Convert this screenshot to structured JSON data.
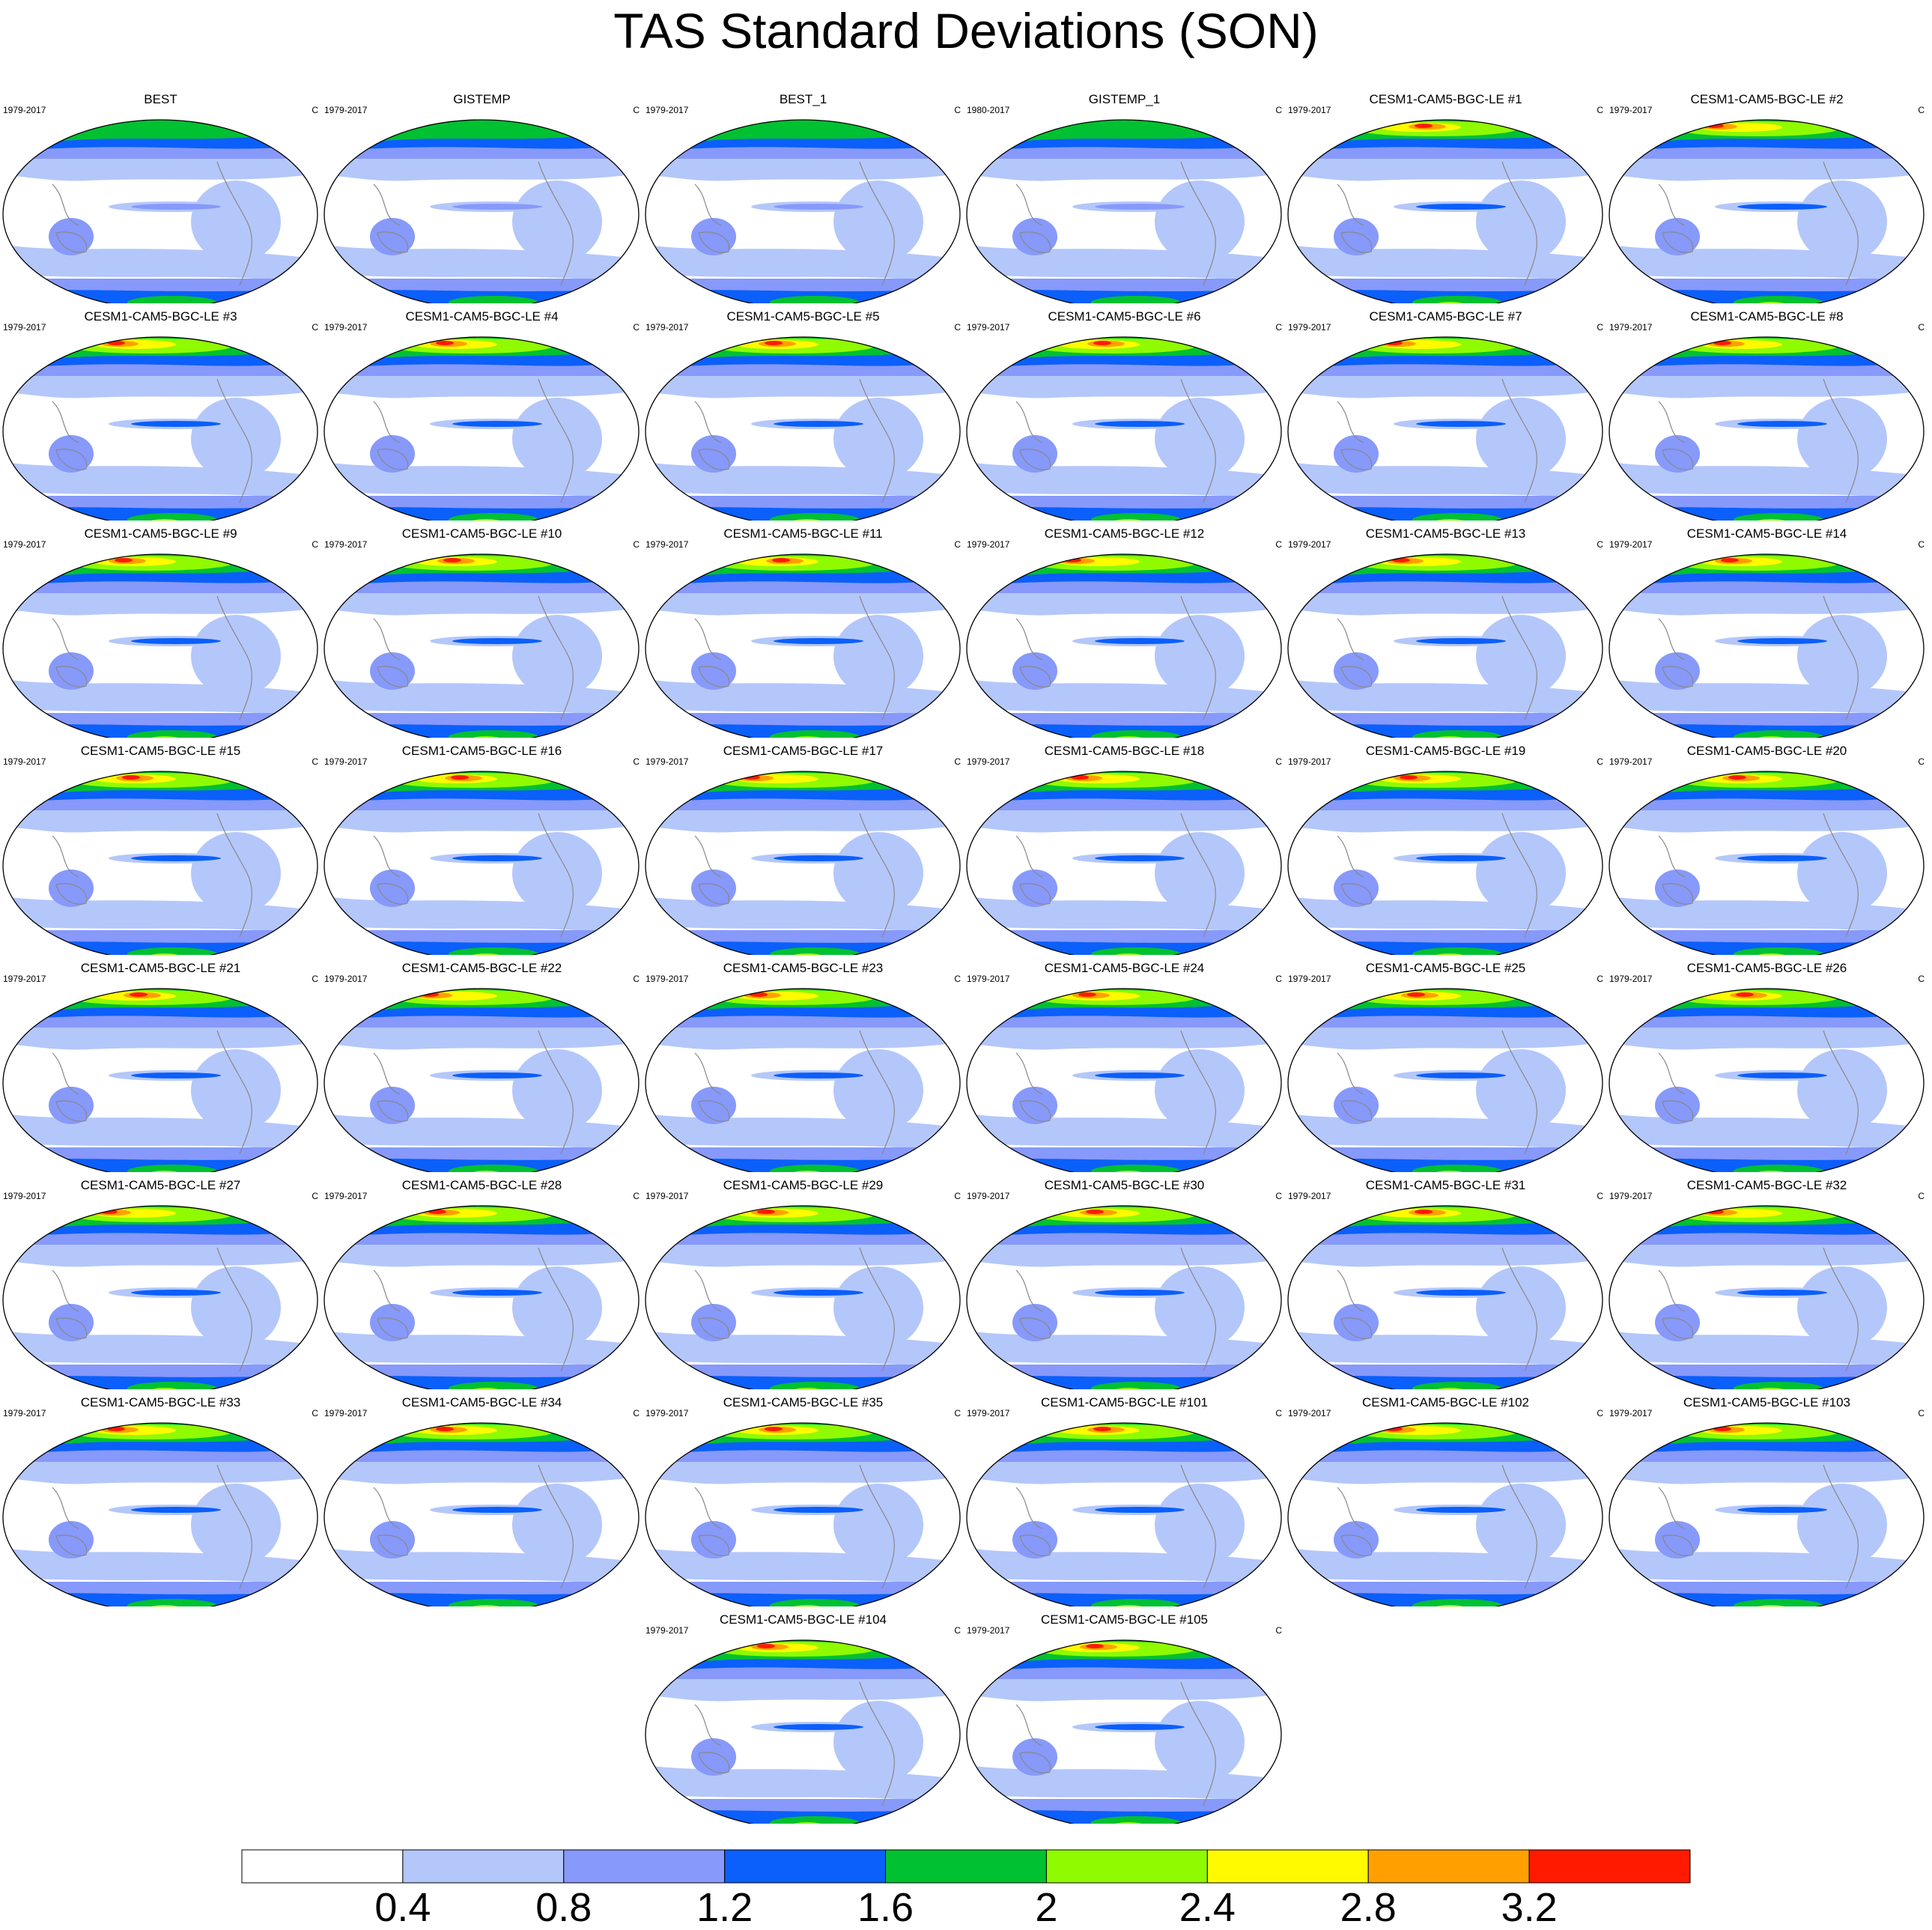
{
  "title": "TAS Standard Deviations (SON)",
  "colors": [
    "#ffffff",
    "#b4c7fa",
    "#8799fa",
    "#0b5ffa",
    "#00c131",
    "#90fa00",
    "#fffa00",
    "#ffa000",
    "#ff1a00"
  ],
  "colorbar": {
    "labels": [
      "0.4",
      "0.8",
      "1.2",
      "1.6",
      "2",
      "2.4",
      "2.8",
      "3.2"
    ]
  },
  "chart_data": {
    "type": "heatmap",
    "units": "C",
    "levels": [
      0.4,
      0.8,
      1.2,
      1.6,
      2.0,
      2.4,
      2.8,
      3.2
    ],
    "panels": [
      {
        "title": "BEST",
        "period": "1979-2017",
        "units": "C"
      },
      {
        "title": "GISTEMP",
        "period": "1979-2017",
        "units": "C"
      },
      {
        "title": "BEST_1",
        "period": "1979-2017",
        "units": "C"
      },
      {
        "title": "GISTEMP_1",
        "period": "1980-2017",
        "units": "C"
      },
      {
        "title": "CESM1-CAM5-BGC-LE #1",
        "period": "1979-2017",
        "units": "C"
      },
      {
        "title": "CESM1-CAM5-BGC-LE #2",
        "period": "1979-2017",
        "units": "C"
      },
      {
        "title": "CESM1-CAM5-BGC-LE #3",
        "period": "1979-2017",
        "units": "C"
      },
      {
        "title": "CESM1-CAM5-BGC-LE #4",
        "period": "1979-2017",
        "units": "C"
      },
      {
        "title": "CESM1-CAM5-BGC-LE #5",
        "period": "1979-2017",
        "units": "C"
      },
      {
        "title": "CESM1-CAM5-BGC-LE #6",
        "period": "1979-2017",
        "units": "C"
      },
      {
        "title": "CESM1-CAM5-BGC-LE #7",
        "period": "1979-2017",
        "units": "C"
      },
      {
        "title": "CESM1-CAM5-BGC-LE #8",
        "period": "1979-2017",
        "units": "C"
      },
      {
        "title": "CESM1-CAM5-BGC-LE #9",
        "period": "1979-2017",
        "units": "C"
      },
      {
        "title": "CESM1-CAM5-BGC-LE #10",
        "period": "1979-2017",
        "units": "C"
      },
      {
        "title": "CESM1-CAM5-BGC-LE #11",
        "period": "1979-2017",
        "units": "C"
      },
      {
        "title": "CESM1-CAM5-BGC-LE #12",
        "period": "1979-2017",
        "units": "C"
      },
      {
        "title": "CESM1-CAM5-BGC-LE #13",
        "period": "1979-2017",
        "units": "C"
      },
      {
        "title": "CESM1-CAM5-BGC-LE #14",
        "period": "1979-2017",
        "units": "C"
      },
      {
        "title": "CESM1-CAM5-BGC-LE #15",
        "period": "1979-2017",
        "units": "C"
      },
      {
        "title": "CESM1-CAM5-BGC-LE #16",
        "period": "1979-2017",
        "units": "C"
      },
      {
        "title": "CESM1-CAM5-BGC-LE #17",
        "period": "1979-2017",
        "units": "C"
      },
      {
        "title": "CESM1-CAM5-BGC-LE #18",
        "period": "1979-2017",
        "units": "C"
      },
      {
        "title": "CESM1-CAM5-BGC-LE #19",
        "period": "1979-2017",
        "units": "C"
      },
      {
        "title": "CESM1-CAM5-BGC-LE #20",
        "period": "1979-2017",
        "units": "C"
      },
      {
        "title": "CESM1-CAM5-BGC-LE #21",
        "period": "1979-2017",
        "units": "C"
      },
      {
        "title": "CESM1-CAM5-BGC-LE #22",
        "period": "1979-2017",
        "units": "C"
      },
      {
        "title": "CESM1-CAM5-BGC-LE #23",
        "period": "1979-2017",
        "units": "C"
      },
      {
        "title": "CESM1-CAM5-BGC-LE #24",
        "period": "1979-2017",
        "units": "C"
      },
      {
        "title": "CESM1-CAM5-BGC-LE #25",
        "period": "1979-2017",
        "units": "C"
      },
      {
        "title": "CESM1-CAM5-BGC-LE #26",
        "period": "1979-2017",
        "units": "C"
      },
      {
        "title": "CESM1-CAM5-BGC-LE #27",
        "period": "1979-2017",
        "units": "C"
      },
      {
        "title": "CESM1-CAM5-BGC-LE #28",
        "period": "1979-2017",
        "units": "C"
      },
      {
        "title": "CESM1-CAM5-BGC-LE #29",
        "period": "1979-2017",
        "units": "C"
      },
      {
        "title": "CESM1-CAM5-BGC-LE #30",
        "period": "1979-2017",
        "units": "C"
      },
      {
        "title": "CESM1-CAM5-BGC-LE #31",
        "period": "1979-2017",
        "units": "C"
      },
      {
        "title": "CESM1-CAM5-BGC-LE #32",
        "period": "1979-2017",
        "units": "C"
      },
      {
        "title": "CESM1-CAM5-BGC-LE #33",
        "period": "1979-2017",
        "units": "C"
      },
      {
        "title": "CESM1-CAM5-BGC-LE #34",
        "period": "1979-2017",
        "units": "C"
      },
      {
        "title": "CESM1-CAM5-BGC-LE #35",
        "period": "1979-2017",
        "units": "C"
      },
      {
        "title": "CESM1-CAM5-BGC-LE #101",
        "period": "1979-2017",
        "units": "C"
      },
      {
        "title": "CESM1-CAM5-BGC-LE #102",
        "period": "1979-2017",
        "units": "C"
      },
      {
        "title": "CESM1-CAM5-BGC-LE #103",
        "period": "1979-2017",
        "units": "C"
      },
      {
        "title": "CESM1-CAM5-BGC-LE #104",
        "period": "1979-2017",
        "units": "C"
      },
      {
        "title": "CESM1-CAM5-BGC-LE #105",
        "period": "1979-2017",
        "units": "C"
      }
    ]
  }
}
